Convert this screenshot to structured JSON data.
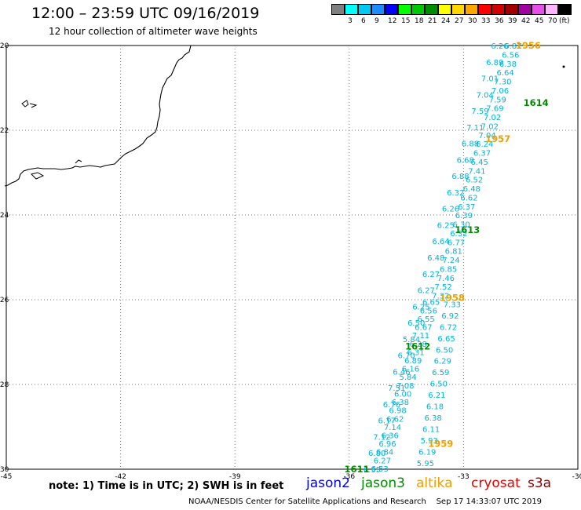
{
  "header": {
    "title": "12:00 – 23:59 UTC 09/16/2019",
    "subtitle": "12 hour collection of altimeter wave heights"
  },
  "legend": {
    "swatches": [
      {
        "color": "#7f7f7f",
        "label": ""
      },
      {
        "color": "#00ffff",
        "label": "3"
      },
      {
        "color": "#00c8f0",
        "label": "6"
      },
      {
        "color": "#1e8cff",
        "label": "9"
      },
      {
        "color": "#0000ff",
        "label": "12"
      },
      {
        "color": "#00ff00",
        "label": "15"
      },
      {
        "color": "#00c800",
        "label": "18"
      },
      {
        "color": "#008c00",
        "label": "21"
      },
      {
        "color": "#ffff00",
        "label": "24"
      },
      {
        "color": "#ffd700",
        "label": "27"
      },
      {
        "color": "#ffa500",
        "label": "30"
      },
      {
        "color": "#ff0000",
        "label": "33"
      },
      {
        "color": "#d20000",
        "label": "36"
      },
      {
        "color": "#a00000",
        "label": "39"
      },
      {
        "color": "#a000a0",
        "label": "42"
      },
      {
        "color": "#e650e6",
        "label": "45"
      },
      {
        "color": "#ffb4ff",
        "label": "70"
      },
      {
        "color": "#000000",
        "label": "(ft)"
      }
    ]
  },
  "map": {
    "lon_ticks": [
      {
        "lon": -45,
        "label": "-45"
      },
      {
        "lon": -42,
        "label": "-42"
      },
      {
        "lon": -39,
        "label": "-39"
      },
      {
        "lon": -36,
        "label": "-36"
      },
      {
        "lon": -33,
        "label": "-33"
      },
      {
        "lon": -30,
        "label": "-30"
      }
    ],
    "lat_ticks": [
      {
        "lat": -20,
        "label": "-20"
      },
      {
        "lat": -22,
        "label": "-22"
      },
      {
        "lat": -24,
        "label": "-24"
      },
      {
        "lat": -26,
        "label": "-26"
      },
      {
        "lat": -28,
        "label": "-28"
      },
      {
        "lat": -30,
        "label": "-30"
      }
    ],
    "track_color": "#00b4dc",
    "coast_color": "#000000"
  },
  "tracks": [
    {
      "lon_start": -32.05,
      "lat_start": -20.0,
      "lon_end": -35.4,
      "lat_end": -30.0,
      "values": [
        "6.26",
        "6.89",
        "7.01",
        "7.04",
        "7.59",
        "7.11",
        "6.88",
        "6.68",
        "6.88",
        "6.32",
        "6.26",
        "6.25",
        "6.64",
        "6.48",
        "6.27",
        "6.27",
        "6.25",
        "6.50",
        "5.84",
        "6.70",
        "6.46",
        "7.51",
        "6.76",
        "6.17",
        "7.12",
        "6.80",
        "6.35"
      ]
    },
    {
      "lon_start": -31.7,
      "lat_start": -20.0,
      "lon_end": -33.6,
      "lat_end": -25.9,
      "values": [
        "6.87",
        "6.56",
        "6.38",
        "6.64",
        "7.30",
        "7.06",
        "7.59",
        "7.69",
        "7.02",
        "7.02",
        "7.04",
        "6.24",
        "6.37",
        "6.45",
        "7.41",
        "6.52",
        "6.48",
        "6.62",
        "6.37",
        "6.39",
        "6.30",
        "6.32",
        "6.77",
        "6.81",
        "7.24",
        "6.85",
        "7.46",
        "7.52",
        "7.32"
      ]
    },
    {
      "lon_start": -33.85,
      "lat_start": -26.05,
      "lon_end": -35.2,
      "lat_end": -29.98,
      "values": [
        "6.65",
        "6.56",
        "6.55",
        "6.67",
        "7.11",
        "6.28",
        "6.31",
        "6.89",
        "6.16",
        "5.84",
        "7.08",
        "6.00",
        "6.38",
        "6.98",
        "6.62",
        "7.14",
        "6.36",
        "6.96",
        "6.84",
        "6.27",
        "6.53"
      ]
    },
    {
      "lon_start": -33.3,
      "lat_start": -26.1,
      "lon_end": -34.0,
      "lat_end": -29.85,
      "values": [
        "7.33",
        "6.92",
        "6.72",
        "6.65",
        "6.50",
        "6.29",
        "6.59",
        "6.50",
        "6.21",
        "6.18",
        "6.38",
        "6.11",
        "5.93",
        "6.19",
        "5.95"
      ]
    }
  ],
  "passes": [
    {
      "label": "1956",
      "lon": -31.3,
      "lat": -20.0,
      "color": "#f0a000"
    },
    {
      "label": "1614",
      "lon": -31.1,
      "lat": -21.35,
      "color": "#008c00"
    },
    {
      "label": "1957",
      "lon": -32.1,
      "lat": -22.2,
      "color": "#f0a000"
    },
    {
      "label": "1613",
      "lon": -32.9,
      "lat": -24.35,
      "color": "#008c00"
    },
    {
      "label": "1958",
      "lon": -33.3,
      "lat": -25.95,
      "color": "#f0a000"
    },
    {
      "label": "1612",
      "lon": -34.2,
      "lat": -27.1,
      "color": "#008c00"
    },
    {
      "label": "1959",
      "lon": -33.6,
      "lat": -29.4,
      "color": "#f0a000"
    },
    {
      "label": "1611",
      "lon": -35.8,
      "lat": -30.0,
      "color": "#008c00"
    }
  ],
  "footer": {
    "note": "note: 1) Time is in UTC; 2) SWH is in feet",
    "satellites": [
      {
        "name": "jason2",
        "color": "#0000e6"
      },
      {
        "name": "jason3",
        "color": "#008c00"
      },
      {
        "name": "altika",
        "color": "#f0a000"
      },
      {
        "name": "cryosat",
        "color": "#e60000"
      },
      {
        "name": "s3a",
        "color": "#8c0000"
      }
    ],
    "credit": "NOAA/NESDIS Center for Satellite Applications and Research    Sep 17 14:33:07 UTC 2019"
  }
}
